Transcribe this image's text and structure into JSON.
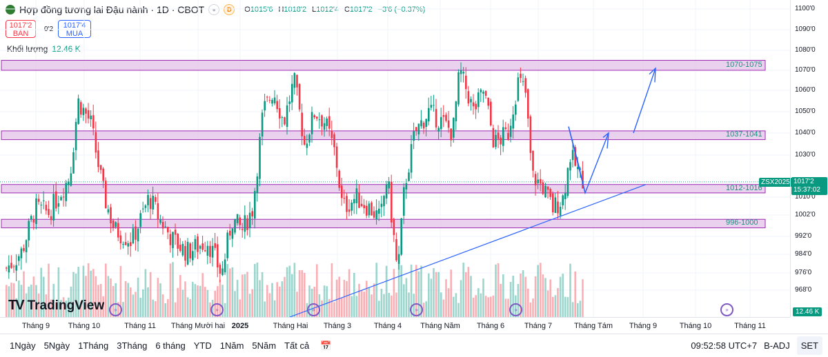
{
  "header": {
    "title": "Hợp đồng tương lai Đậu nành · 1D · CBOT",
    "badge_d": "D",
    "ohlc": {
      "o_key": "O",
      "o_val": "1015'6",
      "h_key": "H",
      "h_val": "1018'2",
      "l_key": "L",
      "l_val": "1012'4",
      "c_key": "C",
      "c_val": "1017'2",
      "change": "−3'6 (−0.37%)"
    }
  },
  "trade": {
    "sell_price": "1017'2",
    "sell_label": "BÁN",
    "spread": "0'2",
    "buy_price": "1017'4",
    "buy_label": "MUA"
  },
  "volume": {
    "label": "Khối lượng",
    "value": "12.46 K",
    "axis_tag": "12.46 K"
  },
  "logo": {
    "mark": "TV",
    "name": "TradingView"
  },
  "price_axis": {
    "labels": [
      "1100'0",
      "1090'0",
      "1080'0",
      "1070'0",
      "1060'0",
      "1050'0",
      "1040'0",
      "1030'0",
      "1010'0",
      "1002'0",
      "992'0",
      "984'0",
      "976'0",
      "968'0"
    ],
    "last_price": "1017'2",
    "countdown": "15:37:02",
    "symbol": "ZSX2025"
  },
  "time_axis": {
    "labels": [
      "Tháng 9",
      "Tháng 10",
      "Tháng 11",
      "Tháng Mười hai",
      "2025",
      "Tháng Hai",
      "Tháng 3",
      "Tháng 4",
      "Tháng Năm",
      "Tháng 6",
      "Tháng 7",
      "Tháng Tám",
      "Tháng 9",
      "Tháng 10",
      "Tháng 11"
    ]
  },
  "zones": [
    {
      "label": "1070-1075",
      "lo": 1070,
      "hi": 1075
    },
    {
      "label": "1037-1041",
      "lo": 1037,
      "hi": 1041
    },
    {
      "label": "1012-1016",
      "lo": 1012,
      "hi": 1016
    },
    {
      "label": "996-1000",
      "lo": 996,
      "hi": 1000
    }
  ],
  "timeframes": [
    "1Ngày",
    "5Ngày",
    "1Tháng",
    "3Tháng",
    "6 tháng",
    "YTD",
    "1Năm",
    "5Năm",
    "Tất cả"
  ],
  "footer": {
    "clock": "09:52:58 UTC+7",
    "adj": "B-ADJ",
    "set": "SET"
  },
  "colors": {
    "up": "#089981",
    "down": "#f23645",
    "zone_fill": "#e1bee7",
    "zone_border": "#9c27b0",
    "trend": "#2962ff"
  }
}
